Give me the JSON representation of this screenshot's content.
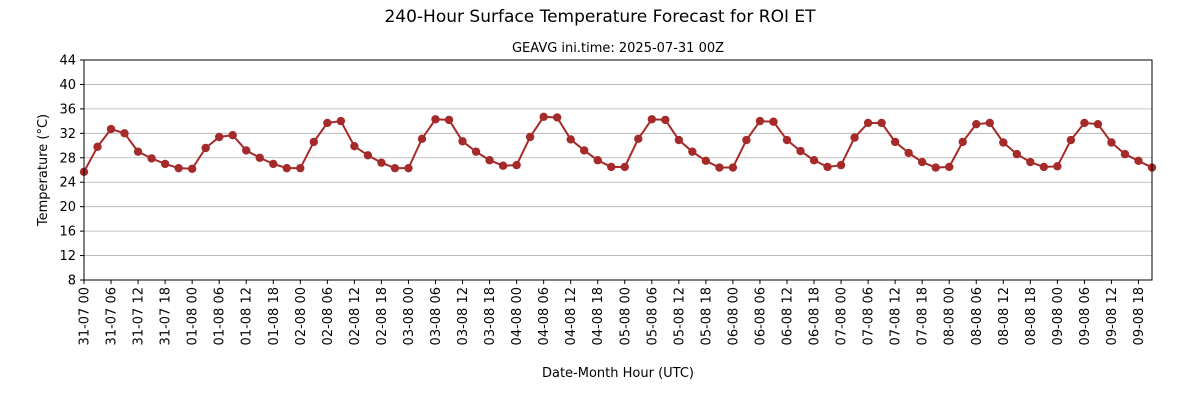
{
  "chart_data": {
    "type": "line",
    "title": "240-Hour Surface Temperature Forecast for ROI ET",
    "subtitle": "GEAVG ini.time: 2025-07-31 00Z",
    "xlabel": "Date-Month Hour (UTC)",
    "ylabel": "Temperature (°C)",
    "ylim": [
      8,
      44
    ],
    "yticks": [
      8,
      12,
      16,
      20,
      24,
      28,
      32,
      36,
      40,
      44
    ],
    "grid": "horizontal",
    "line_color": "#a52a2a",
    "x": [
      "31-07 00",
      "31-07 03",
      "31-07 06",
      "31-07 09",
      "31-07 12",
      "31-07 15",
      "31-07 18",
      "31-07 21",
      "01-08 00",
      "01-08 03",
      "01-08 06",
      "01-08 09",
      "01-08 12",
      "01-08 15",
      "01-08 18",
      "01-08 21",
      "02-08 00",
      "02-08 03",
      "02-08 06",
      "02-08 09",
      "02-08 12",
      "02-08 15",
      "02-08 18",
      "02-08 21",
      "03-08 00",
      "03-08 03",
      "03-08 06",
      "03-08 09",
      "03-08 12",
      "03-08 15",
      "03-08 18",
      "03-08 21",
      "04-08 00",
      "04-08 03",
      "04-08 06",
      "04-08 09",
      "04-08 12",
      "04-08 15",
      "04-08 18",
      "04-08 21",
      "05-08 00",
      "05-08 03",
      "05-08 06",
      "05-08 09",
      "05-08 12",
      "05-08 15",
      "05-08 18",
      "05-08 21",
      "06-08 00",
      "06-08 03",
      "06-08 06",
      "06-08 09",
      "06-08 12",
      "06-08 15",
      "06-08 18",
      "06-08 21",
      "07-08 00",
      "07-08 03",
      "07-08 06",
      "07-08 09",
      "07-08 12",
      "07-08 15",
      "07-08 18",
      "07-08 21",
      "08-08 00",
      "08-08 03",
      "08-08 06",
      "08-08 09",
      "08-08 12",
      "08-08 15",
      "08-08 18",
      "08-08 21",
      "09-08 00",
      "09-08 03",
      "09-08 06",
      "09-08 09",
      "09-08 12",
      "09-08 15",
      "09-08 18",
      "09-08 21"
    ],
    "xtick_labels": [
      "31-07 00",
      "31-07 06",
      "31-07 12",
      "31-07 18",
      "01-08 00",
      "01-08 06",
      "01-08 12",
      "01-08 18",
      "02-08 00",
      "02-08 06",
      "02-08 12",
      "02-08 18",
      "03-08 00",
      "03-08 06",
      "03-08 12",
      "03-08 18",
      "04-08 00",
      "04-08 06",
      "04-08 12",
      "04-08 18",
      "05-08 00",
      "05-08 06",
      "05-08 12",
      "05-08 18",
      "06-08 00",
      "06-08 06",
      "06-08 12",
      "06-08 18",
      "07-08 00",
      "07-08 06",
      "07-08 12",
      "07-08 18",
      "08-08 00",
      "08-08 06",
      "08-08 12",
      "08-08 18",
      "09-08 00",
      "09-08 06",
      "09-08 12",
      "09-08 18"
    ],
    "series": [
      {
        "values": [
          25.7,
          29.8,
          32.7,
          32.0,
          29.0,
          27.9,
          27.0,
          26.3,
          26.2,
          29.6,
          31.4,
          31.7,
          29.2,
          28.0,
          27.0,
          26.3,
          26.3,
          30.6,
          33.7,
          34.0,
          29.9,
          28.4,
          27.2,
          26.3,
          26.3,
          31.1,
          34.3,
          34.2,
          30.7,
          29.0,
          27.6,
          26.7,
          26.8,
          31.4,
          34.7,
          34.6,
          31.0,
          29.2,
          27.6,
          26.5,
          26.5,
          31.1,
          34.3,
          34.2,
          30.9,
          29.0,
          27.5,
          26.4,
          26.4,
          30.9,
          34.0,
          33.9,
          30.9,
          29.1,
          27.6,
          26.5,
          26.8,
          31.3,
          33.7,
          33.7,
          30.6,
          28.8,
          27.3,
          26.4,
          26.5,
          30.6,
          33.5,
          33.7,
          30.5,
          28.6,
          27.3,
          26.5,
          26.6,
          30.9,
          33.7,
          33.5,
          30.5,
          28.6,
          27.5,
          26.4
        ]
      }
    ]
  }
}
